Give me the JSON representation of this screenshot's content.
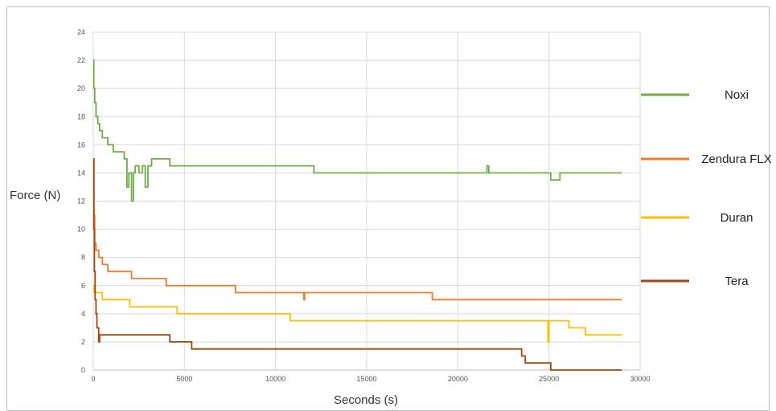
{
  "chart_data": {
    "type": "line",
    "title": "",
    "xlabel": "Seconds (s)",
    "ylabel": "Force (N)",
    "xlim": [
      0,
      30000
    ],
    "ylim": [
      0,
      24
    ],
    "xticks": [
      "0",
      "5000",
      "10000",
      "15000",
      "20000",
      "25000",
      "30000"
    ],
    "yticks": [
      "0",
      "2",
      "4",
      "6",
      "8",
      "10",
      "12",
      "14",
      "16",
      "18",
      "20",
      "22",
      "24"
    ],
    "grid": true,
    "legend_position": "right",
    "series": [
      {
        "name": "Noxi",
        "color": "#70ad47",
        "points": [
          [
            0,
            22
          ],
          [
            30,
            20
          ],
          [
            80,
            19
          ],
          [
            150,
            18
          ],
          [
            250,
            17.5
          ],
          [
            350,
            17
          ],
          [
            500,
            16.5
          ],
          [
            700,
            16.5
          ],
          [
            800,
            16
          ],
          [
            1000,
            16
          ],
          [
            1100,
            15.5
          ],
          [
            1500,
            15.5
          ],
          [
            1700,
            15
          ],
          [
            1850,
            13
          ],
          [
            1950,
            14
          ],
          [
            2100,
            12
          ],
          [
            2200,
            14
          ],
          [
            2300,
            14.5
          ],
          [
            2500,
            14
          ],
          [
            2700,
            14.5
          ],
          [
            2850,
            13
          ],
          [
            3000,
            14.5
          ],
          [
            3200,
            15
          ],
          [
            4000,
            15
          ],
          [
            4200,
            14.5
          ],
          [
            6200,
            14.5
          ],
          [
            7000,
            14.5
          ],
          [
            8000,
            14.5
          ],
          [
            9500,
            14.5
          ],
          [
            10000,
            14.5
          ],
          [
            12000,
            14.5
          ],
          [
            12100,
            14
          ],
          [
            21500,
            14
          ],
          [
            21600,
            14.5
          ],
          [
            21700,
            14
          ],
          [
            25000,
            14
          ],
          [
            25100,
            13.5
          ],
          [
            25500,
            13.5
          ],
          [
            25600,
            14
          ],
          [
            29000,
            14
          ]
        ]
      },
      {
        "name": "Zendura FLX",
        "color": "#ed7d31",
        "points": [
          [
            0,
            15
          ],
          [
            40,
            11
          ],
          [
            80,
            9
          ],
          [
            150,
            8.5
          ],
          [
            300,
            8
          ],
          [
            500,
            7.5
          ],
          [
            800,
            7
          ],
          [
            2000,
            7
          ],
          [
            2100,
            6.5
          ],
          [
            3700,
            6.5
          ],
          [
            4000,
            6
          ],
          [
            7700,
            6
          ],
          [
            7800,
            5.5
          ],
          [
            11500,
            5.5
          ],
          [
            11550,
            5
          ],
          [
            11600,
            5.5
          ],
          [
            16400,
            5.5
          ],
          [
            18500,
            5.5
          ],
          [
            18600,
            5
          ],
          [
            29000,
            5
          ]
        ]
      },
      {
        "name": "Duran",
        "color": "#ffc000",
        "points": [
          [
            0,
            6
          ],
          [
            50,
            5.5
          ],
          [
            400,
            5.5
          ],
          [
            500,
            5
          ],
          [
            1800,
            5
          ],
          [
            2000,
            4.5
          ],
          [
            4300,
            4.5
          ],
          [
            4600,
            4
          ],
          [
            10700,
            4
          ],
          [
            10800,
            3.5
          ],
          [
            12800,
            3.5
          ],
          [
            24900,
            3.5
          ],
          [
            24950,
            2
          ],
          [
            25000,
            3.5
          ],
          [
            26000,
            3.5
          ],
          [
            26100,
            3
          ],
          [
            26900,
            3
          ],
          [
            27000,
            2.5
          ],
          [
            29000,
            2.5
          ]
        ]
      },
      {
        "name": "Tera",
        "color": "#9e480e",
        "points": [
          [
            0,
            15
          ],
          [
            30,
            10
          ],
          [
            60,
            7
          ],
          [
            100,
            5
          ],
          [
            150,
            4
          ],
          [
            200,
            3
          ],
          [
            300,
            2
          ],
          [
            350,
            2.5
          ],
          [
            4100,
            2.5
          ],
          [
            4200,
            2
          ],
          [
            5300,
            2
          ],
          [
            5400,
            1.5
          ],
          [
            23400,
            1.5
          ],
          [
            23500,
            1
          ],
          [
            23700,
            0.5
          ],
          [
            25000,
            0.5
          ],
          [
            25100,
            0
          ],
          [
            29000,
            0
          ]
        ]
      }
    ]
  }
}
